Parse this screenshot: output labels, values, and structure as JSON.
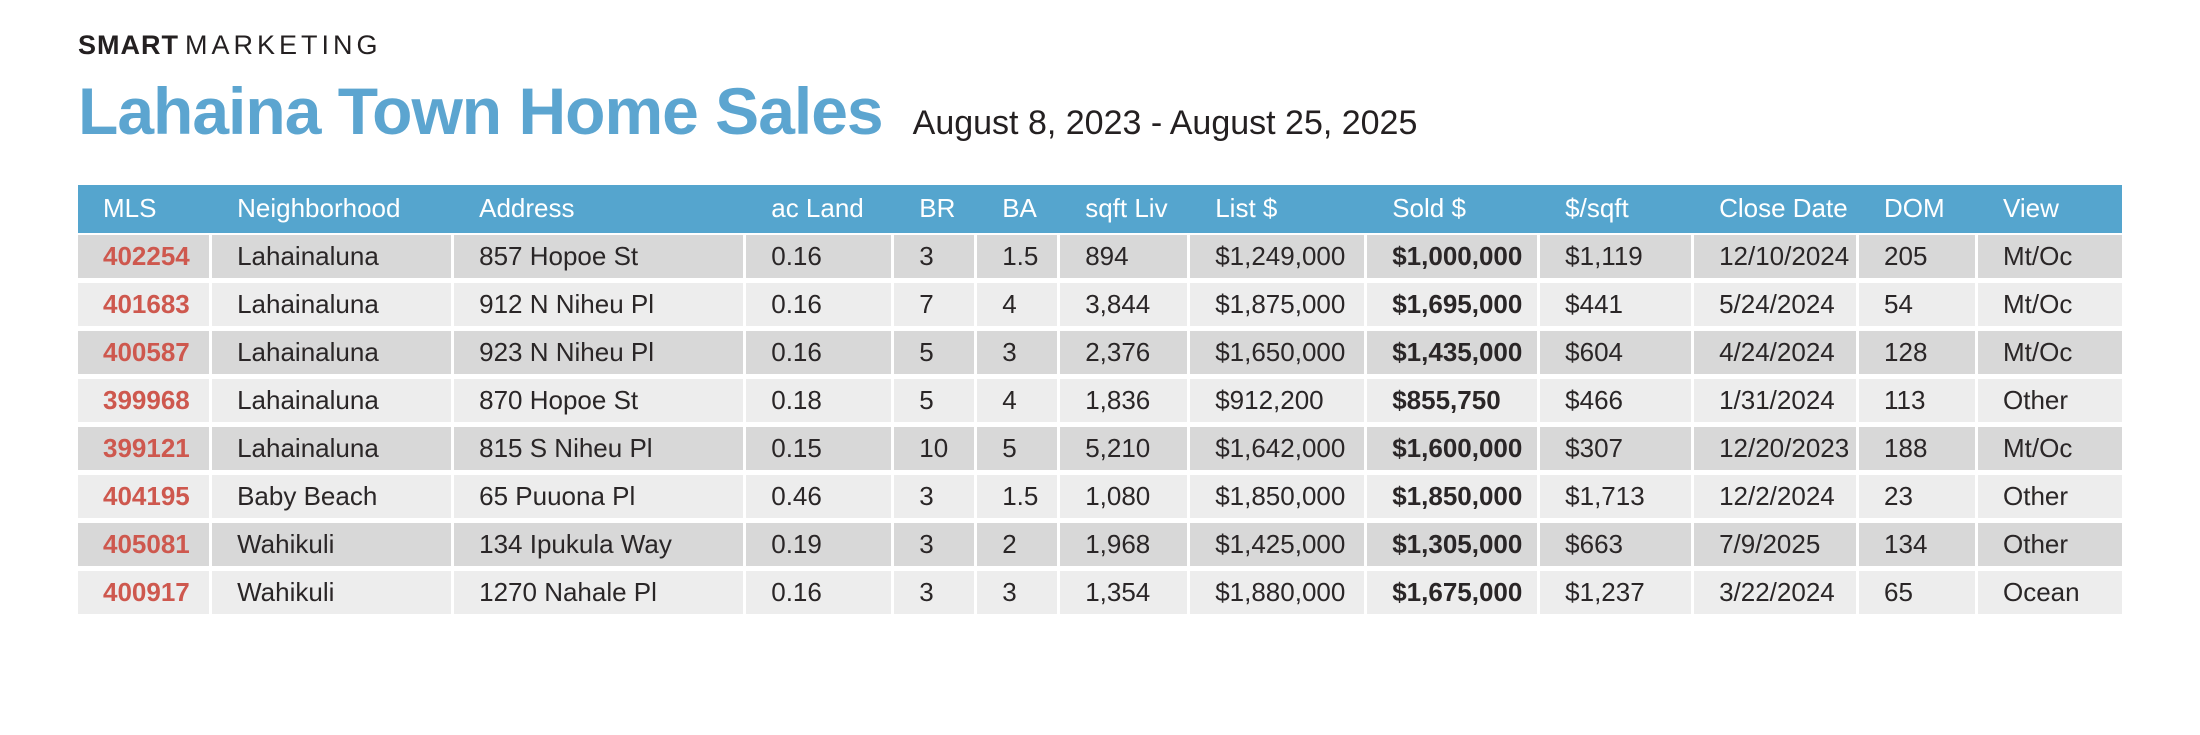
{
  "brand": {
    "bold": "SMART",
    "light": "MARKETING"
  },
  "header": {
    "title": "Lahaina Town Home Sales",
    "date_range": "August 8, 2023 - August 25, 2025"
  },
  "colors": {
    "title_color": "#5CA5D0",
    "header_bg": "#55A5CE",
    "mls_color": "#CE584E",
    "row_odd": "#D8D8D8",
    "row_even": "#EDEDED"
  },
  "table": {
    "columns": [
      {
        "key": "mls",
        "label": "MLS"
      },
      {
        "key": "neighborhood",
        "label": "Neighborhood"
      },
      {
        "key": "address",
        "label": "Address"
      },
      {
        "key": "acland",
        "label": "ac Land"
      },
      {
        "key": "br",
        "label": "BR"
      },
      {
        "key": "ba",
        "label": "BA"
      },
      {
        "key": "sqftliv",
        "label": "sqft Liv"
      },
      {
        "key": "list",
        "label": "List $"
      },
      {
        "key": "sold",
        "label": "Sold $"
      },
      {
        "key": "persqft",
        "label": "$/sqft"
      },
      {
        "key": "closedate",
        "label": "Close Date"
      },
      {
        "key": "dom",
        "label": "DOM"
      },
      {
        "key": "view",
        "label": "View"
      }
    ],
    "rows": [
      [
        "402254",
        "Lahainaluna",
        "857 Hopoe St",
        "0.16",
        "3",
        "1.5",
        "894",
        "$1,249,000",
        "$1,000,000",
        "$1,119",
        "12/10/2024",
        "205",
        "Mt/Oc"
      ],
      [
        "401683",
        "Lahainaluna",
        "912 N Niheu Pl",
        "0.16",
        "7",
        "4",
        "3,844",
        "$1,875,000",
        "$1,695,000",
        "$441",
        "5/24/2024",
        "54",
        "Mt/Oc"
      ],
      [
        "400587",
        "Lahainaluna",
        "923 N Niheu Pl",
        "0.16",
        "5",
        "3",
        "2,376",
        "$1,650,000",
        "$1,435,000",
        "$604",
        "4/24/2024",
        "128",
        "Mt/Oc"
      ],
      [
        "399968",
        "Lahainaluna",
        "870 Hopoe St",
        "0.18",
        "5",
        "4",
        "1,836",
        "$912,200",
        "$855,750",
        "$466",
        "1/31/2024",
        "113",
        "Other"
      ],
      [
        "399121",
        "Lahainaluna",
        "815 S Niheu Pl",
        "0.15",
        "10",
        "5",
        "5,210",
        "$1,642,000",
        "$1,600,000",
        "$307",
        "12/20/2023",
        "188",
        "Mt/Oc"
      ],
      [
        "404195",
        "Baby Beach",
        "65 Puuona Pl",
        "0.46",
        "3",
        "1.5",
        "1,080",
        "$1,850,000",
        "$1,850,000",
        "$1,713",
        "12/2/2024",
        "23",
        "Other"
      ],
      [
        "405081",
        "Wahikuli",
        "134 Ipukula Way",
        "0.19",
        "3",
        "2",
        "1,968",
        "$1,425,000",
        "$1,305,000",
        "$663",
        "7/9/2025",
        "134",
        "Other"
      ],
      [
        "400917",
        "Wahikuli",
        "1270 Nahale Pl",
        "0.16",
        "3",
        "3",
        "1,354",
        "$1,880,000",
        "$1,675,000",
        "$1,237",
        "3/22/2024",
        "65",
        "Ocean"
      ]
    ]
  }
}
